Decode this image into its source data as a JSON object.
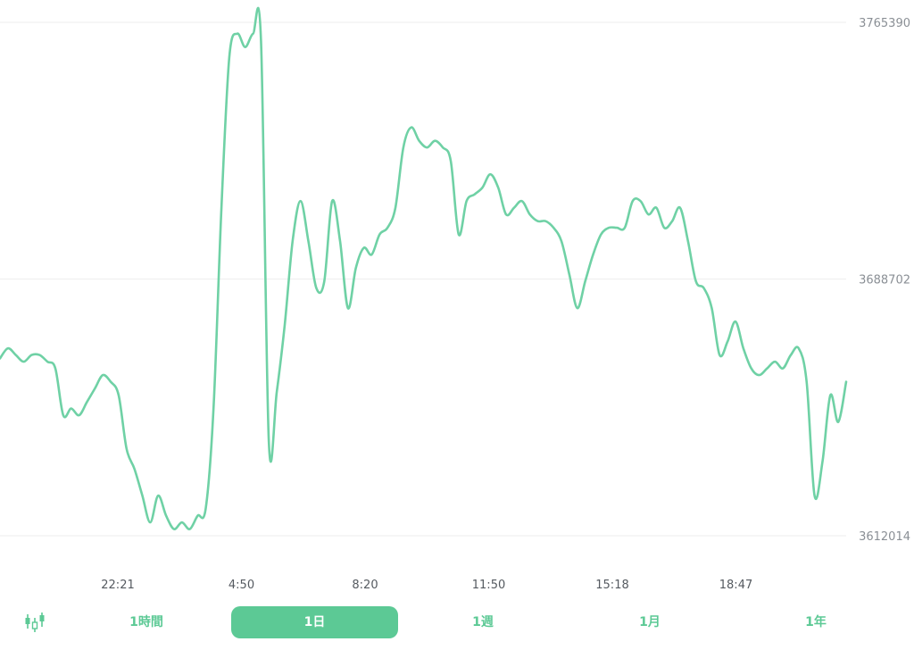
{
  "colors": {
    "line": "#6fd1a5",
    "accent": "#5cc995",
    "grid": "#eeeeee",
    "axis_text": "#8a8f95",
    "tick_text": "#555a60"
  },
  "chart_data": {
    "type": "line",
    "title": "",
    "xlabel": "",
    "ylabel": "",
    "grid": "horizontal",
    "y_ticks": [
      "3765390",
      "3688702",
      "3612014"
    ],
    "ylim": [
      3612014,
      3765390
    ],
    "x_ticks": [
      "22:21",
      "4:50",
      "8:20",
      "11:50",
      "15:18",
      "18:47"
    ],
    "series": [
      {
        "values": [
          3665000,
          3668000,
          3666000,
          3664000,
          3666000,
          3666000,
          3664000,
          3662000,
          3648000,
          3650000,
          3648000,
          3652000,
          3656000,
          3660000,
          3658000,
          3654000,
          3638000,
          3632000,
          3624000,
          3616000,
          3624000,
          3618000,
          3614000,
          3616000,
          3614000,
          3618000,
          3620000,
          3650000,
          3710000,
          3755000,
          3762000,
          3758000,
          3762000,
          3760000,
          3640000,
          3655000,
          3675000,
          3700000,
          3712000,
          3700000,
          3686000,
          3688000,
          3712000,
          3700000,
          3680000,
          3692000,
          3698000,
          3696000,
          3702000,
          3704000,
          3710000,
          3728000,
          3734000,
          3730000,
          3728000,
          3730000,
          3728000,
          3724000,
          3702000,
          3712000,
          3714000,
          3716000,
          3720000,
          3716000,
          3708000,
          3710000,
          3712000,
          3708000,
          3706000,
          3706000,
          3704000,
          3700000,
          3690000,
          3680000,
          3688000,
          3696000,
          3702000,
          3704000,
          3704000,
          3704000,
          3712000,
          3712000,
          3708000,
          3710000,
          3704000,
          3706000,
          3710000,
          3700000,
          3688000,
          3686000,
          3680000,
          3666000,
          3670000,
          3676000,
          3668000,
          3662000,
          3660000,
          3662000,
          3664000,
          3662000,
          3666000,
          3668000,
          3658000,
          3624000,
          3634000,
          3654000,
          3646000,
          3658000
        ]
      }
    ]
  },
  "range_selector": {
    "candle_icon": "candlestick-icon",
    "tabs": [
      "1時間",
      "1日",
      "1週",
      "1月",
      "1年"
    ],
    "active": "1日"
  }
}
